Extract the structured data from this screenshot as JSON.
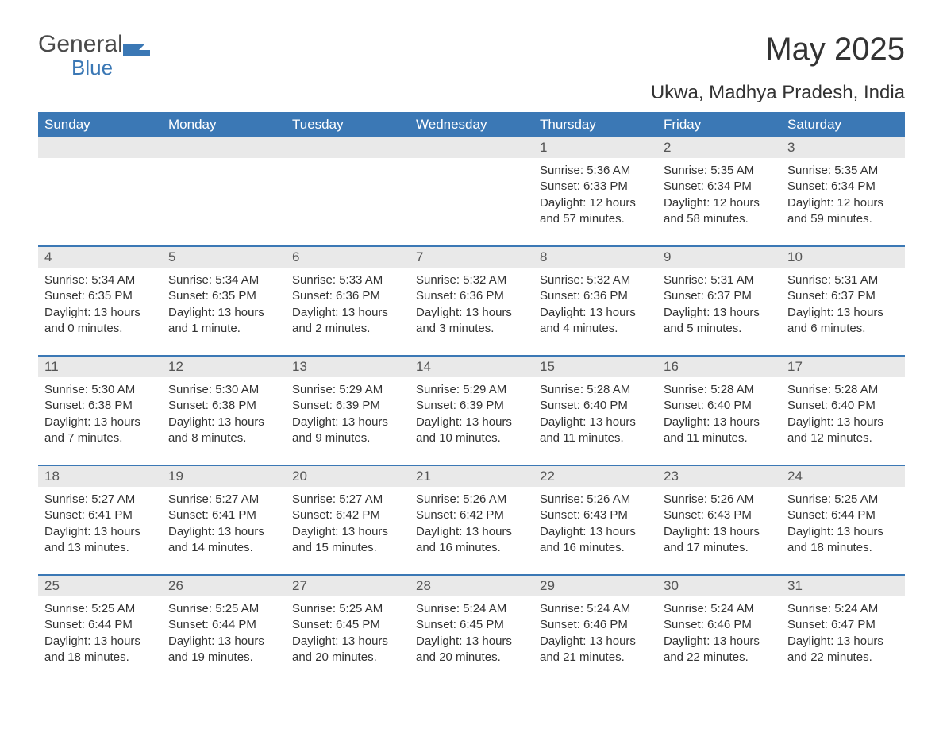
{
  "logo": {
    "general": "General",
    "blue": "Blue"
  },
  "title": "May 2025",
  "location": "Ukwa, Madhya Pradesh, India",
  "colors": {
    "header_bg": "#3b78b5",
    "header_text": "#ffffff",
    "daynum_bg": "#e9e9e9",
    "text": "#333333",
    "divider": "#3b78b5",
    "background": "#ffffff"
  },
  "typography": {
    "title_fontsize": 40,
    "location_fontsize": 24,
    "dow_fontsize": 17,
    "daynum_fontsize": 17,
    "body_fontsize": 15
  },
  "layout": {
    "columns": 7,
    "rows": 5
  },
  "days_of_week": [
    "Sunday",
    "Monday",
    "Tuesday",
    "Wednesday",
    "Thursday",
    "Friday",
    "Saturday"
  ],
  "weeks": [
    [
      {
        "day": "",
        "sunrise": "",
        "sunset": "",
        "daylight": ""
      },
      {
        "day": "",
        "sunrise": "",
        "sunset": "",
        "daylight": ""
      },
      {
        "day": "",
        "sunrise": "",
        "sunset": "",
        "daylight": ""
      },
      {
        "day": "",
        "sunrise": "",
        "sunset": "",
        "daylight": ""
      },
      {
        "day": "1",
        "sunrise": "Sunrise: 5:36 AM",
        "sunset": "Sunset: 6:33 PM",
        "daylight": "Daylight: 12 hours and 57 minutes."
      },
      {
        "day": "2",
        "sunrise": "Sunrise: 5:35 AM",
        "sunset": "Sunset: 6:34 PM",
        "daylight": "Daylight: 12 hours and 58 minutes."
      },
      {
        "day": "3",
        "sunrise": "Sunrise: 5:35 AM",
        "sunset": "Sunset: 6:34 PM",
        "daylight": "Daylight: 12 hours and 59 minutes."
      }
    ],
    [
      {
        "day": "4",
        "sunrise": "Sunrise: 5:34 AM",
        "sunset": "Sunset: 6:35 PM",
        "daylight": "Daylight: 13 hours and 0 minutes."
      },
      {
        "day": "5",
        "sunrise": "Sunrise: 5:34 AM",
        "sunset": "Sunset: 6:35 PM",
        "daylight": "Daylight: 13 hours and 1 minute."
      },
      {
        "day": "6",
        "sunrise": "Sunrise: 5:33 AM",
        "sunset": "Sunset: 6:36 PM",
        "daylight": "Daylight: 13 hours and 2 minutes."
      },
      {
        "day": "7",
        "sunrise": "Sunrise: 5:32 AM",
        "sunset": "Sunset: 6:36 PM",
        "daylight": "Daylight: 13 hours and 3 minutes."
      },
      {
        "day": "8",
        "sunrise": "Sunrise: 5:32 AM",
        "sunset": "Sunset: 6:36 PM",
        "daylight": "Daylight: 13 hours and 4 minutes."
      },
      {
        "day": "9",
        "sunrise": "Sunrise: 5:31 AM",
        "sunset": "Sunset: 6:37 PM",
        "daylight": "Daylight: 13 hours and 5 minutes."
      },
      {
        "day": "10",
        "sunrise": "Sunrise: 5:31 AM",
        "sunset": "Sunset: 6:37 PM",
        "daylight": "Daylight: 13 hours and 6 minutes."
      }
    ],
    [
      {
        "day": "11",
        "sunrise": "Sunrise: 5:30 AM",
        "sunset": "Sunset: 6:38 PM",
        "daylight": "Daylight: 13 hours and 7 minutes."
      },
      {
        "day": "12",
        "sunrise": "Sunrise: 5:30 AM",
        "sunset": "Sunset: 6:38 PM",
        "daylight": "Daylight: 13 hours and 8 minutes."
      },
      {
        "day": "13",
        "sunrise": "Sunrise: 5:29 AM",
        "sunset": "Sunset: 6:39 PM",
        "daylight": "Daylight: 13 hours and 9 minutes."
      },
      {
        "day": "14",
        "sunrise": "Sunrise: 5:29 AM",
        "sunset": "Sunset: 6:39 PM",
        "daylight": "Daylight: 13 hours and 10 minutes."
      },
      {
        "day": "15",
        "sunrise": "Sunrise: 5:28 AM",
        "sunset": "Sunset: 6:40 PM",
        "daylight": "Daylight: 13 hours and 11 minutes."
      },
      {
        "day": "16",
        "sunrise": "Sunrise: 5:28 AM",
        "sunset": "Sunset: 6:40 PM",
        "daylight": "Daylight: 13 hours and 11 minutes."
      },
      {
        "day": "17",
        "sunrise": "Sunrise: 5:28 AM",
        "sunset": "Sunset: 6:40 PM",
        "daylight": "Daylight: 13 hours and 12 minutes."
      }
    ],
    [
      {
        "day": "18",
        "sunrise": "Sunrise: 5:27 AM",
        "sunset": "Sunset: 6:41 PM",
        "daylight": "Daylight: 13 hours and 13 minutes."
      },
      {
        "day": "19",
        "sunrise": "Sunrise: 5:27 AM",
        "sunset": "Sunset: 6:41 PM",
        "daylight": "Daylight: 13 hours and 14 minutes."
      },
      {
        "day": "20",
        "sunrise": "Sunrise: 5:27 AM",
        "sunset": "Sunset: 6:42 PM",
        "daylight": "Daylight: 13 hours and 15 minutes."
      },
      {
        "day": "21",
        "sunrise": "Sunrise: 5:26 AM",
        "sunset": "Sunset: 6:42 PM",
        "daylight": "Daylight: 13 hours and 16 minutes."
      },
      {
        "day": "22",
        "sunrise": "Sunrise: 5:26 AM",
        "sunset": "Sunset: 6:43 PM",
        "daylight": "Daylight: 13 hours and 16 minutes."
      },
      {
        "day": "23",
        "sunrise": "Sunrise: 5:26 AM",
        "sunset": "Sunset: 6:43 PM",
        "daylight": "Daylight: 13 hours and 17 minutes."
      },
      {
        "day": "24",
        "sunrise": "Sunrise: 5:25 AM",
        "sunset": "Sunset: 6:44 PM",
        "daylight": "Daylight: 13 hours and 18 minutes."
      }
    ],
    [
      {
        "day": "25",
        "sunrise": "Sunrise: 5:25 AM",
        "sunset": "Sunset: 6:44 PM",
        "daylight": "Daylight: 13 hours and 18 minutes."
      },
      {
        "day": "26",
        "sunrise": "Sunrise: 5:25 AM",
        "sunset": "Sunset: 6:44 PM",
        "daylight": "Daylight: 13 hours and 19 minutes."
      },
      {
        "day": "27",
        "sunrise": "Sunrise: 5:25 AM",
        "sunset": "Sunset: 6:45 PM",
        "daylight": "Daylight: 13 hours and 20 minutes."
      },
      {
        "day": "28",
        "sunrise": "Sunrise: 5:24 AM",
        "sunset": "Sunset: 6:45 PM",
        "daylight": "Daylight: 13 hours and 20 minutes."
      },
      {
        "day": "29",
        "sunrise": "Sunrise: 5:24 AM",
        "sunset": "Sunset: 6:46 PM",
        "daylight": "Daylight: 13 hours and 21 minutes."
      },
      {
        "day": "30",
        "sunrise": "Sunrise: 5:24 AM",
        "sunset": "Sunset: 6:46 PM",
        "daylight": "Daylight: 13 hours and 22 minutes."
      },
      {
        "day": "31",
        "sunrise": "Sunrise: 5:24 AM",
        "sunset": "Sunset: 6:47 PM",
        "daylight": "Daylight: 13 hours and 22 minutes."
      }
    ]
  ]
}
